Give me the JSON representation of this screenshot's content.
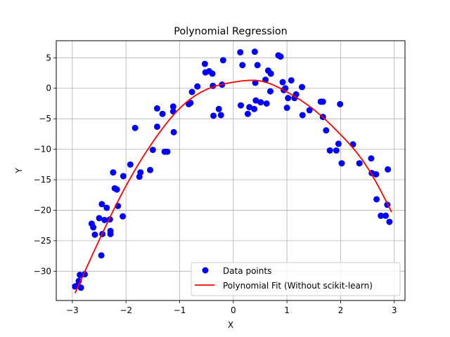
{
  "chart_data": {
    "type": "scatter",
    "title": "Polynomial Regression",
    "xlabel": "X",
    "ylabel": "Y",
    "xlim": [
      -3.3,
      3.2
    ],
    "ylim": [
      -34.8,
      7.8
    ],
    "xticks": [
      -3,
      -2,
      -1,
      0,
      1,
      2,
      3
    ],
    "yticks": [
      -30,
      -25,
      -20,
      -15,
      -10,
      -5,
      0,
      5
    ],
    "grid": true,
    "legend_position": "lower-right",
    "colors": {
      "points": "#0000ff",
      "fit": "#ff0000",
      "grid": "#b0b0b0"
    },
    "series": [
      {
        "name": "Data points",
        "type": "scatter",
        "points": [
          [
            -2.95,
            -32.5
          ],
          [
            -2.9,
            -32.3
          ],
          [
            -2.88,
            -31.6
          ],
          [
            -2.86,
            -30.6
          ],
          [
            -2.84,
            -32.7
          ],
          [
            -2.77,
            -30.5
          ],
          [
            -2.64,
            -22.2
          ],
          [
            -2.61,
            -22.8
          ],
          [
            -2.58,
            -24.0
          ],
          [
            -2.5,
            -21.3
          ],
          [
            -2.46,
            -27.4
          ],
          [
            -2.45,
            -19.0
          ],
          [
            -2.44,
            -23.9
          ],
          [
            -2.4,
            -21.6
          ],
          [
            -2.36,
            -19.6
          ],
          [
            -2.3,
            -21.5
          ],
          [
            -2.29,
            -23.4
          ],
          [
            -2.29,
            -23.9
          ],
          [
            -2.24,
            -13.8
          ],
          [
            -2.21,
            -16.4
          ],
          [
            -2.17,
            -16.6
          ],
          [
            -2.15,
            -19.3
          ],
          [
            -2.06,
            -21.0
          ],
          [
            -2.05,
            -14.4
          ],
          [
            -1.92,
            -12.5
          ],
          [
            -1.83,
            -6.5
          ],
          [
            -1.75,
            -14.5
          ],
          [
            -1.73,
            -13.8
          ],
          [
            -1.55,
            -13.4
          ],
          [
            -1.5,
            -10.1
          ],
          [
            -1.42,
            -6.3
          ],
          [
            -1.42,
            -3.3
          ],
          [
            -1.32,
            -4.2
          ],
          [
            -1.28,
            -10.4
          ],
          [
            -1.23,
            -10.4
          ],
          [
            -1.12,
            -3.0
          ],
          [
            -1.12,
            -3.8
          ],
          [
            -1.11,
            -7.2
          ],
          [
            -0.83,
            -2.6
          ],
          [
            -0.8,
            -2.4
          ],
          [
            -0.77,
            -0.6
          ],
          [
            -0.67,
            0.3
          ],
          [
            -0.53,
            4.0
          ],
          [
            -0.52,
            2.6
          ],
          [
            -0.45,
            2.8
          ],
          [
            -0.39,
            2.4
          ],
          [
            -0.38,
            0.4
          ],
          [
            -0.37,
            -4.5
          ],
          [
            -0.27,
            -3.4
          ],
          [
            -0.23,
            -4.4
          ],
          [
            -0.21,
            0.6
          ],
          [
            -0.19,
            4.6
          ],
          [
            0.13,
            5.9
          ],
          [
            0.14,
            -2.8
          ],
          [
            0.17,
            3.8
          ],
          [
            0.27,
            -4.2
          ],
          [
            0.3,
            -3.1
          ],
          [
            0.39,
            -3.4
          ],
          [
            0.4,
            6.0
          ],
          [
            0.41,
            0.9
          ],
          [
            0.42,
            -2.0
          ],
          [
            0.45,
            3.8
          ],
          [
            0.51,
            -2.3
          ],
          [
            0.6,
            1.4
          ],
          [
            0.62,
            -2.5
          ],
          [
            0.65,
            2.9
          ],
          [
            0.69,
            -0.5
          ],
          [
            0.7,
            2.4
          ],
          [
            0.84,
            5.4
          ],
          [
            0.88,
            5.2
          ],
          [
            0.92,
            1.0
          ],
          [
            0.94,
            -0.3
          ],
          [
            0.97,
            0.0
          ],
          [
            1.0,
            -3.2
          ],
          [
            1.02,
            -1.6
          ],
          [
            1.08,
            1.3
          ],
          [
            1.14,
            -1.6
          ],
          [
            1.17,
            -1.0
          ],
          [
            1.28,
            0.2
          ],
          [
            1.29,
            -4.4
          ],
          [
            1.42,
            -3.6
          ],
          [
            1.63,
            -2.2
          ],
          [
            1.67,
            -2.2
          ],
          [
            1.67,
            -4.7
          ],
          [
            1.73,
            -6.9
          ],
          [
            1.8,
            -10.2
          ],
          [
            1.92,
            -10.2
          ],
          [
            1.96,
            -9.1
          ],
          [
            1.99,
            -2.6
          ],
          [
            2.02,
            -12.3
          ],
          [
            2.23,
            -9.2
          ],
          [
            2.35,
            -12.3
          ],
          [
            2.57,
            -11.5
          ],
          [
            2.58,
            -13.9
          ],
          [
            2.66,
            -14.1
          ],
          [
            2.67,
            -18.2
          ],
          [
            2.75,
            -20.9
          ],
          [
            2.84,
            -20.9
          ],
          [
            2.87,
            -19.1
          ],
          [
            2.88,
            -13.3
          ],
          [
            2.91,
            -21.9
          ]
        ]
      },
      {
        "name": "Polynomial Fit (Without scikit-learn)",
        "type": "line",
        "points": [
          [
            -2.95,
            -33.6
          ],
          [
            -2.5,
            -24.9
          ],
          [
            -2.0,
            -16.0
          ],
          [
            -1.5,
            -8.8
          ],
          [
            -1.0,
            -3.3
          ],
          [
            -0.5,
            -0.2
          ],
          [
            0.0,
            1.0
          ],
          [
            0.3,
            1.3
          ],
          [
            0.5,
            1.2
          ],
          [
            1.0,
            -0.6
          ],
          [
            1.5,
            -3.5
          ],
          [
            2.0,
            -7.6
          ],
          [
            2.5,
            -13.0
          ],
          [
            2.95,
            -20.3
          ]
        ]
      }
    ]
  }
}
